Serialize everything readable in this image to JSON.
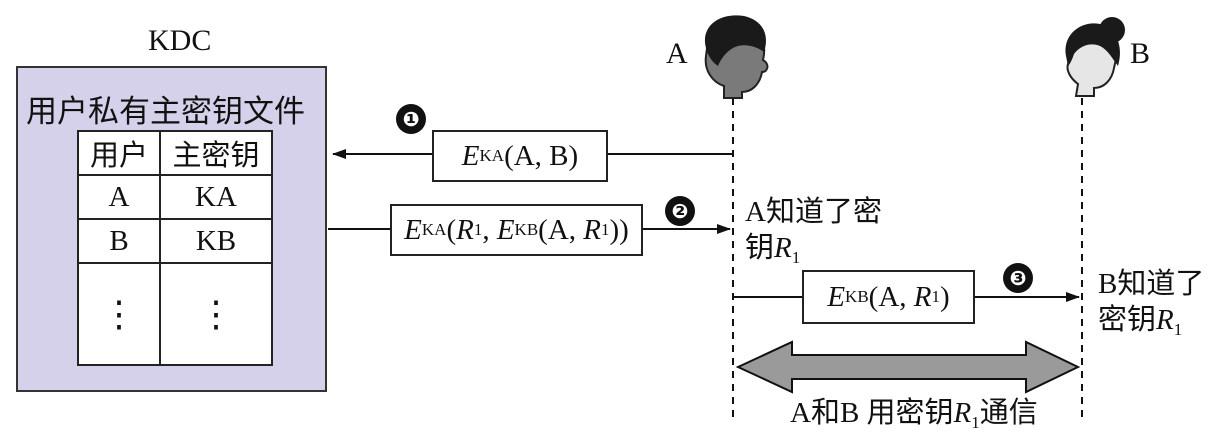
{
  "kdc": {
    "title": "KDC",
    "file_title": "用户私有主密钥文件",
    "table": {
      "headers": [
        "用户",
        "主密钥"
      ],
      "rows": [
        [
          "A",
          "KA"
        ],
        [
          "B",
          "KB"
        ],
        [
          "⋮",
          "⋮"
        ]
      ]
    }
  },
  "actors": {
    "a_label": "A",
    "b_label": "B"
  },
  "steps": {
    "s1_num": "❶",
    "s2_num": "❷",
    "s3_num": "❸"
  },
  "messages": {
    "m1": {
      "e": "E",
      "sub": "KA",
      "args": "(A, B)"
    },
    "m2": {
      "e": "E",
      "sub": "KA",
      "open": "(",
      "r": "R",
      "r_sub": "1",
      "mid": ", ",
      "e2": "E",
      "sub2": "KB",
      "args2_open": "(A, ",
      "r2": "R",
      "r2_sub": "1",
      "close": "))"
    },
    "m3": {
      "e": "E",
      "sub": "KB",
      "open": "(A, ",
      "r": "R",
      "r_sub": "1",
      "close": ")"
    }
  },
  "notes": {
    "a_knows_line1": "A知道了密",
    "a_knows_line2_prefix": "钥",
    "a_knows_r": "R",
    "a_knows_r_sub": "1",
    "b_knows_line1": "B知道了",
    "b_knows_line2_prefix": "密钥",
    "b_knows_r": "R",
    "b_knows_r_sub": "1",
    "comm_prefix": "A和B 用密钥",
    "comm_r": "R",
    "comm_r_sub": "1",
    "comm_suffix": "通信"
  },
  "colors": {
    "kdc_fill": "#d5d1ea",
    "double_arrow_fill": "#9a9a9a"
  }
}
